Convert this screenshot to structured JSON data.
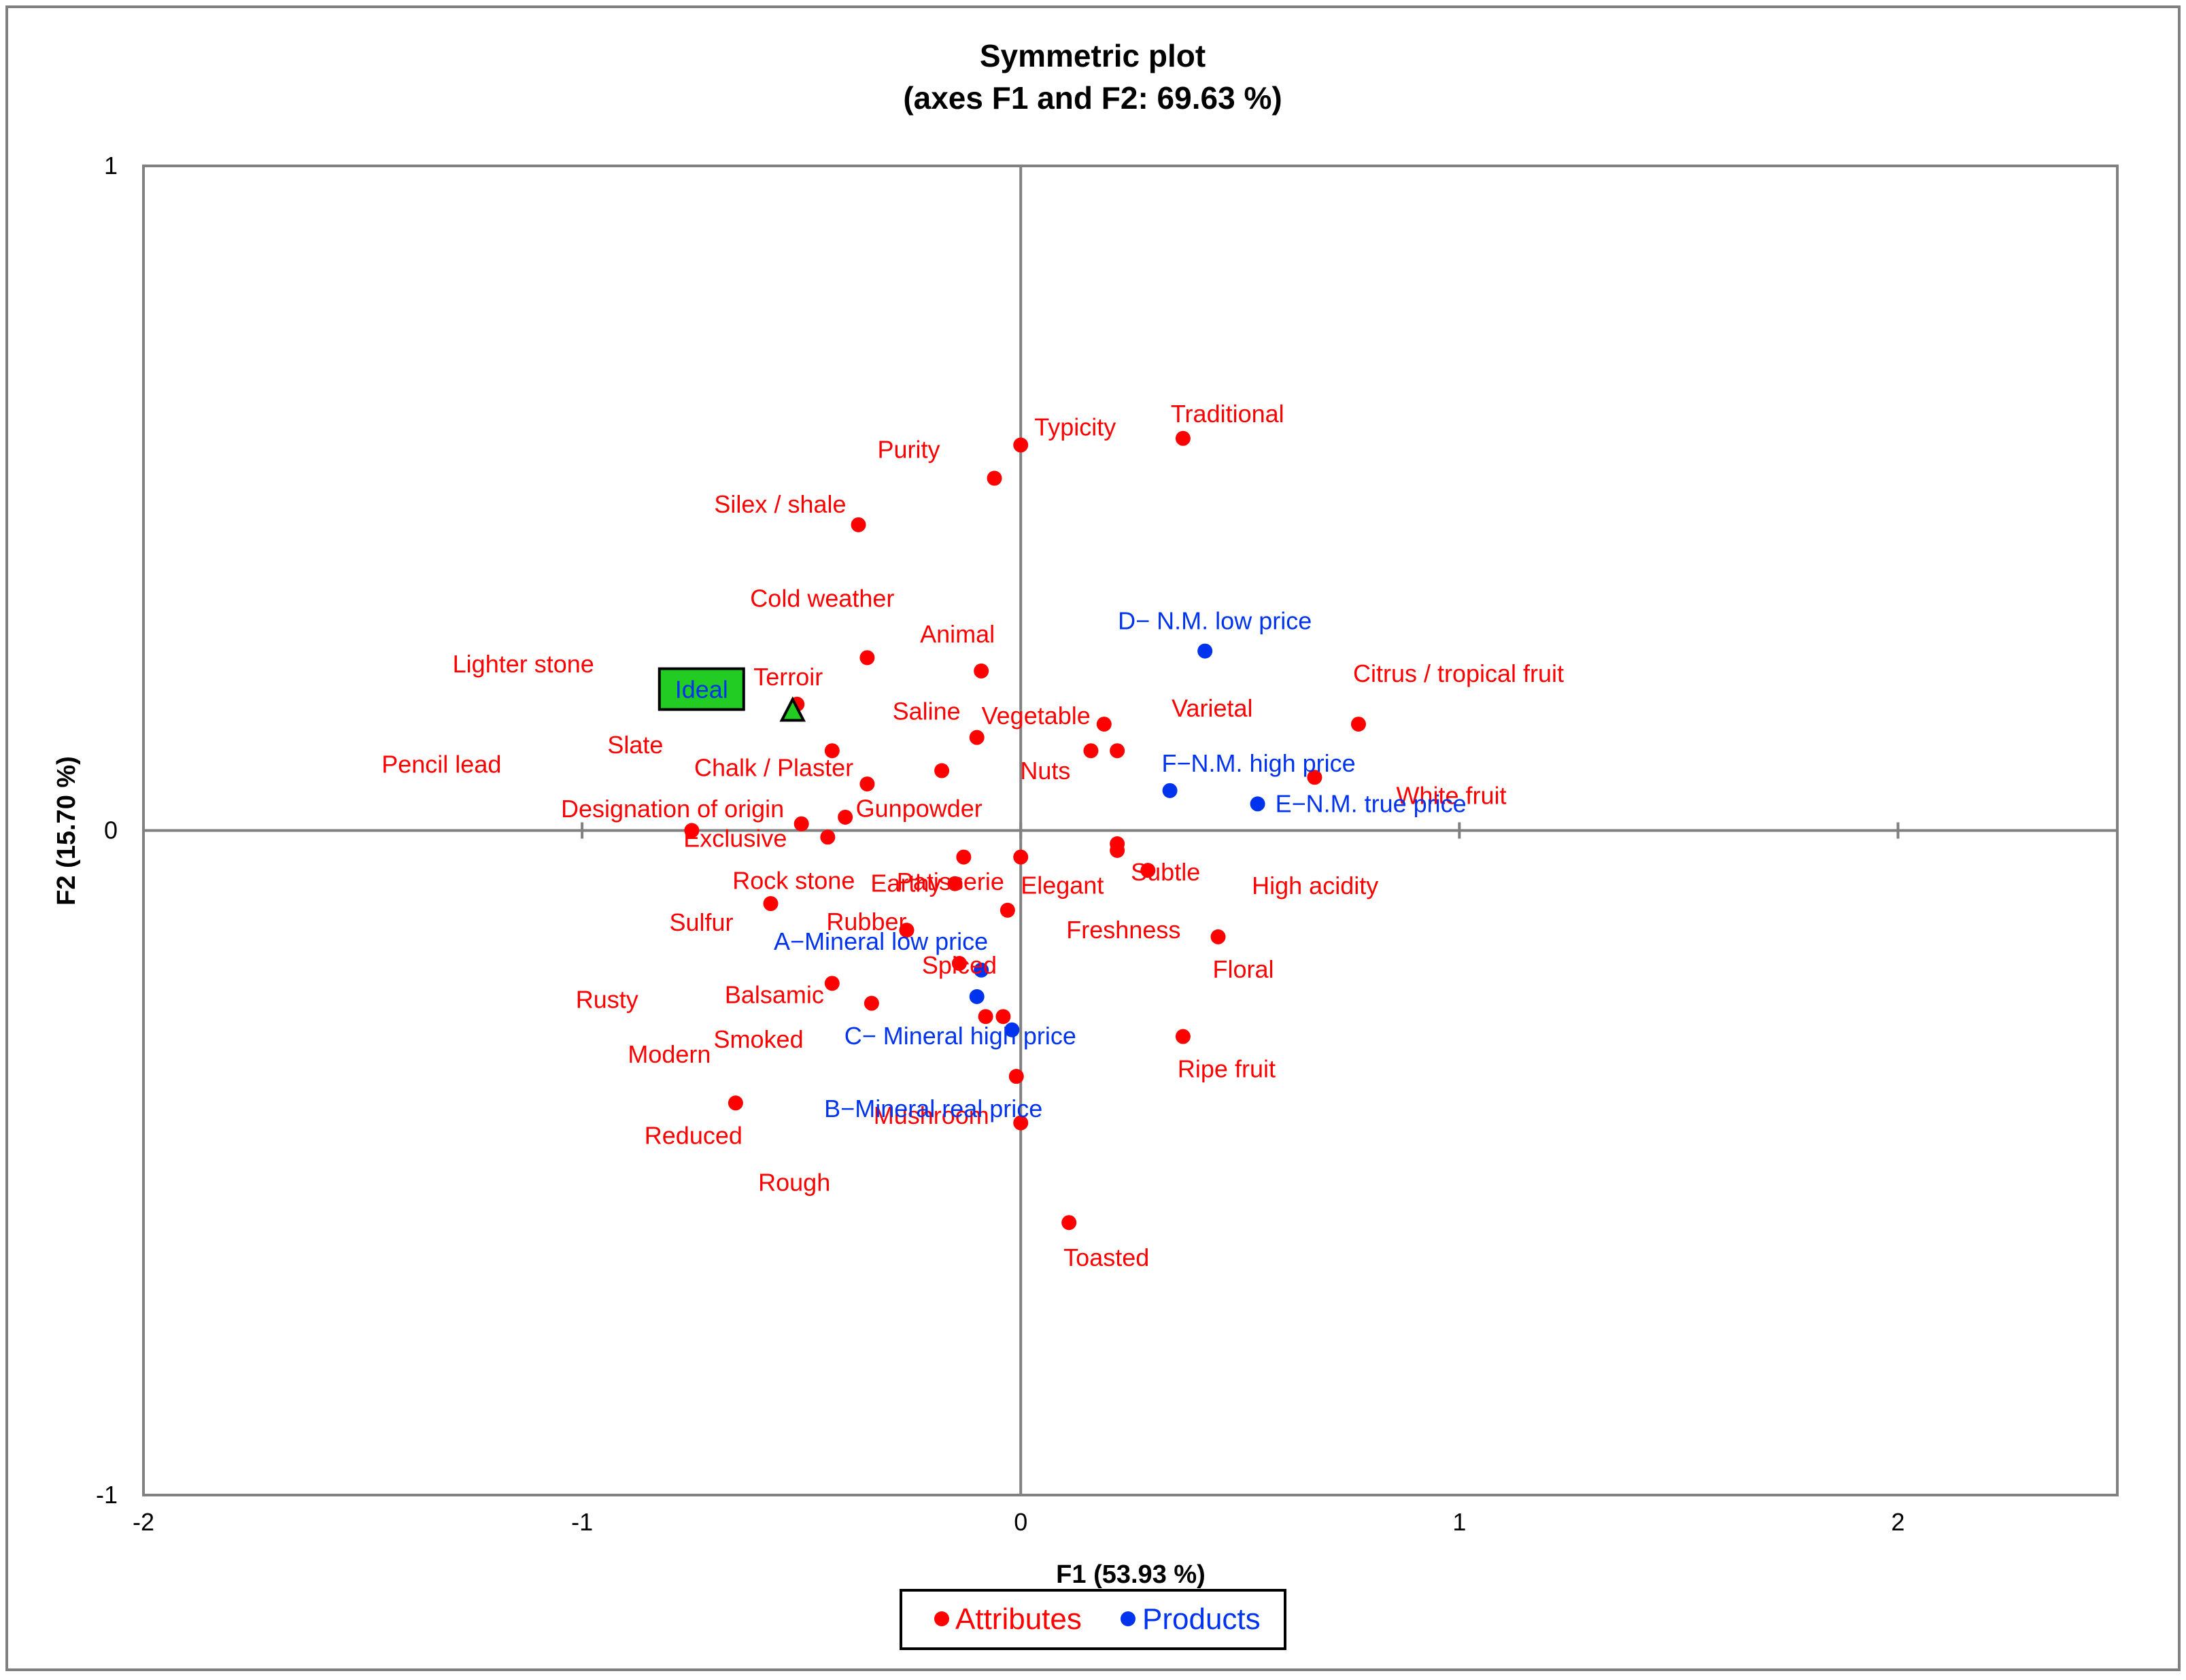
{
  "chart_data": {
    "type": "scatter",
    "title": "Symmetric plot",
    "subtitle": "(axes F1 and F2: 69.63 %)",
    "xlabel": "F1 (53.93 %)",
    "ylabel": "F2 (15.70 %)",
    "xlim": [
      -2,
      2.5
    ],
    "ylim": [
      -1,
      1
    ],
    "x_ticks": [
      -2,
      -1,
      0,
      1,
      2
    ],
    "y_ticks": [
      -1,
      0,
      1
    ],
    "grid": false,
    "colors": {
      "attributes": "#ff0000",
      "products": "#0033ee",
      "ideal_fill": "#22cc22",
      "axis": "#808080"
    },
    "legend": {
      "position": "bottom-center",
      "entries": [
        {
          "name": "Attributes",
          "color": "#ff0000"
        },
        {
          "name": "Products",
          "color": "#0033ee"
        }
      ]
    },
    "ideal": {
      "label": "Ideal",
      "x": -0.52,
      "y": 0.18
    },
    "series": [
      {
        "name": "Attributes",
        "points": [
          {
            "label": "Typicity",
            "x": 0.0,
            "y": 0.58
          },
          {
            "label": "Traditional",
            "x": 0.37,
            "y": 0.59
          },
          {
            "label": "Purity",
            "x": -0.06,
            "y": 0.53
          },
          {
            "label": "Silex / shale",
            "x": -0.37,
            "y": 0.46
          },
          {
            "label": "Cold weather",
            "x": -0.35,
            "y": 0.26
          },
          {
            "label": "Animal",
            "x": -0.09,
            "y": 0.24
          },
          {
            "label": "Terroir",
            "x": -0.51,
            "y": 0.19
          },
          {
            "label": "Lighter stone",
            "x": -0.43,
            "y": 0.12
          },
          {
            "label": "Saline",
            "x": -0.1,
            "y": 0.14
          },
          {
            "label": "Vegetable",
            "x": 0.19,
            "y": 0.16
          },
          {
            "label": "Varietal",
            "x": 0.22,
            "y": 0.12
          },
          {
            "label": "Nuts",
            "x": 0.16,
            "y": 0.12
          },
          {
            "label": "Citrus / tropical fruit",
            "x": 0.77,
            "y": 0.16
          },
          {
            "label": "White fruit",
            "x": 0.67,
            "y": 0.08
          },
          {
            "label": "Chalk / Plaster",
            "x": -0.18,
            "y": 0.09
          },
          {
            "label": "Slate",
            "x": -0.35,
            "y": 0.07
          },
          {
            "label": "Designation of origin",
            "x": -0.4,
            "y": 0.02
          },
          {
            "label": "Gunpowder",
            "x": -0.5,
            "y": 0.01
          },
          {
            "label": "Pencil lead",
            "x": -0.75,
            "y": 0.0
          },
          {
            "label": "Exclusive",
            "x": -0.44,
            "y": -0.01
          },
          {
            "label": "Rock stone",
            "x": -0.13,
            "y": -0.04
          },
          {
            "label": "Earthy",
            "x": -0.15,
            "y": -0.08
          },
          {
            "label": "Elegant",
            "x": 0.0,
            "y": -0.04
          },
          {
            "label": "Subtle",
            "x": 0.22,
            "y": -0.02
          },
          {
            "label": "High acidity",
            "x": 0.22,
            "y": -0.03
          },
          {
            "label": "Freshness",
            "x": 0.29,
            "y": -0.06
          },
          {
            "label": "Sulfur",
            "x": -0.57,
            "y": -0.11
          },
          {
            "label": "Rubber",
            "x": -0.26,
            "y": -0.15
          },
          {
            "label": "Floral",
            "x": 0.45,
            "y": -0.16
          },
          {
            "label": "Spiced",
            "x": -0.14,
            "y": -0.2
          },
          {
            "label": "Balsamic",
            "x": -0.34,
            "y": -0.26
          },
          {
            "label": "Rusty",
            "x": -0.43,
            "y": -0.23
          },
          {
            "label": "Smoked",
            "x": -0.08,
            "y": -0.28
          },
          {
            "label": "Modern",
            "x": -0.04,
            "y": -0.28
          },
          {
            "label": "Ripe fruit",
            "x": 0.37,
            "y": -0.31
          },
          {
            "label": "Mushroom",
            "x": -0.01,
            "y": -0.37
          },
          {
            "label": "Reduced",
            "x": -0.65,
            "y": -0.41
          },
          {
            "label": "Rough",
            "x": 0.0,
            "y": -0.44
          },
          {
            "label": "Toasted",
            "x": 0.11,
            "y": -0.59
          },
          {
            "label": "Patisserie",
            "x": -0.03,
            "y": -0.12
          }
        ]
      },
      {
        "name": "Products",
        "points": [
          {
            "label": "D− N.M. low price",
            "x": 0.42,
            "y": 0.27
          },
          {
            "label": "F−N.M. high price",
            "x": 0.34,
            "y": 0.06
          },
          {
            "label": "E−N.M. true price",
            "x": 0.54,
            "y": 0.04
          },
          {
            "label": "A−Mineral low price",
            "x": -0.09,
            "y": -0.21
          },
          {
            "label": "C− Mineral high price",
            "x": -0.1,
            "y": -0.25
          },
          {
            "label": "B−Mineral real price",
            "x": -0.02,
            "y": -0.3
          }
        ]
      }
    ]
  }
}
